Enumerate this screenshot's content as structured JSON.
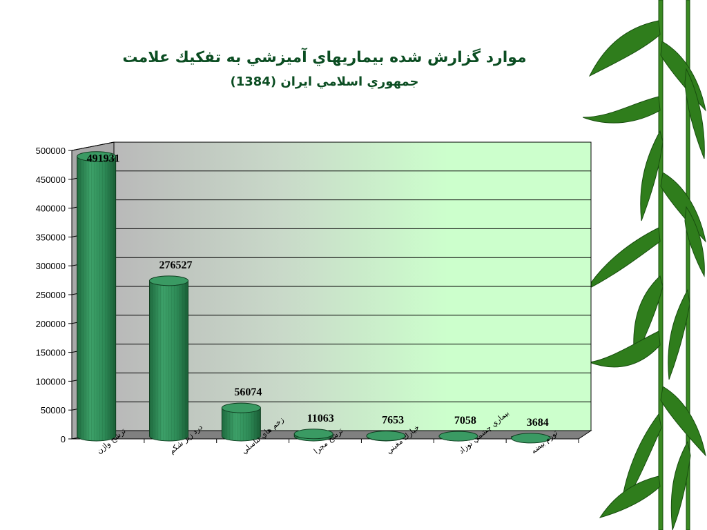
{
  "title": "موارد گزارش شده بيماريهاي آميزشي به تفكيك علامت",
  "subtitle": "جمهوري اسلامي ايران (1384)",
  "chart_data": {
    "type": "bar",
    "categories": [
      "ترشح واژن",
      "درد زير شكم",
      "زخم هاي تناسلي",
      "ترشح مجرا",
      "خيارك مغبني",
      "بيماري چشمي نوزاد",
      "تورم بيضه"
    ],
    "values": [
      491931,
      276527,
      56074,
      11063,
      7653,
      7058,
      3684
    ],
    "data_labels": [
      "491931",
      "276527",
      "56074",
      "11063",
      "7653",
      "7058",
      "3684"
    ],
    "y_ticks": [
      "0",
      "50000",
      "100000",
      "150000",
      "200000",
      "250000",
      "300000",
      "350000",
      "400000",
      "450000",
      "500000"
    ],
    "ylim": [
      0,
      500000
    ],
    "grid": true,
    "legend": "none",
    "colors": {
      "bar": "#2e8b57",
      "bar_dark": "#14532d",
      "plot_bg": "#ccffcc",
      "wall_shade": "#bdbdbd",
      "title": "#0b4d22"
    }
  }
}
